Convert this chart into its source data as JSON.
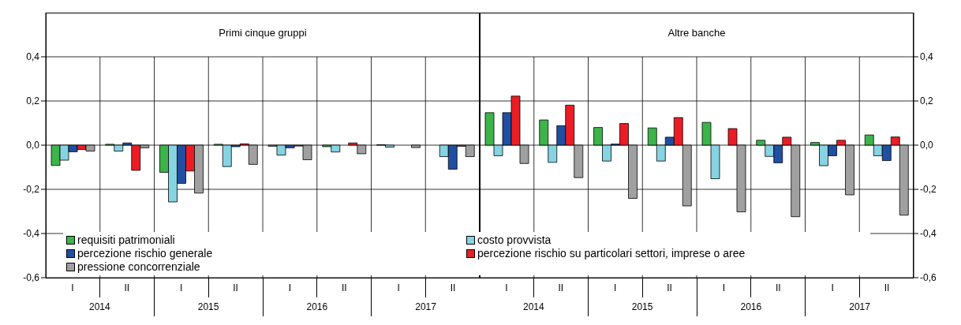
{
  "chart_data": [
    {
      "type": "bar",
      "title": "Primi cinque gruppi",
      "categories": [
        "I",
        "II",
        "I",
        "II",
        "I",
        "II",
        "I",
        "II"
      ],
      "annotations": [
        "2014",
        "2015",
        "2016",
        "2017"
      ],
      "ylim": [
        -0.6,
        0.6
      ],
      "yticks": [
        {
          "value": -0.6,
          "label": "-0,6"
        },
        {
          "value": -0.4,
          "label": "-0,4"
        },
        {
          "value": -0.2,
          "label": "-0,2"
        },
        {
          "value": 0,
          "label": "0,0"
        },
        {
          "value": 0.2,
          "label": "0,2"
        },
        {
          "value": 0.4,
          "label": "0,4"
        }
      ],
      "grid": "y",
      "legend": "bottom",
      "series": [
        {
          "name": "requisiti patrimoniali",
          "color": "#3cb44a",
          "values": [
            -0.092,
            0.004,
            -0.123,
            0.004,
            -0.005,
            -0.007,
            0.002,
            null
          ]
        },
        {
          "name": "costo provvista",
          "color": "#86d3e2",
          "values": [
            -0.068,
            -0.027,
            -0.257,
            -0.097,
            -0.045,
            -0.031,
            -0.009,
            -0.052
          ]
        },
        {
          "name": "percezione rischio generale",
          "color": "#1f4ea3",
          "values": [
            -0.03,
            0.01,
            -0.173,
            -0.007,
            -0.012,
            null,
            null,
            -0.109
          ]
        },
        {
          "name": "percezione rischio su particolari settori, imprese o aree",
          "color": "#ec1c24",
          "values": [
            -0.02,
            -0.114,
            -0.117,
            0.006,
            -0.004,
            0.01,
            null,
            -0.005
          ]
        },
        {
          "name": "pressione concorrenziale",
          "color": "#a0a0a0",
          "values": [
            -0.027,
            -0.012,
            -0.217,
            -0.087,
            -0.066,
            -0.039,
            -0.011,
            -0.052
          ]
        }
      ]
    },
    {
      "type": "bar",
      "title": "Altre banche",
      "categories": [
        "I",
        "II",
        "I",
        "II",
        "I",
        "II",
        "I",
        "II"
      ],
      "annotations": [
        "2014",
        "2015",
        "2016",
        "2017"
      ],
      "ylim": [
        -0.6,
        0.6
      ],
      "yticks": [
        {
          "value": -0.6,
          "label": "-0,6"
        },
        {
          "value": -0.4,
          "label": "-0,4"
        },
        {
          "value": -0.2,
          "label": "-0,2"
        },
        {
          "value": 0,
          "label": "0,0"
        },
        {
          "value": 0.2,
          "label": "0,2"
        },
        {
          "value": 0.4,
          "label": "0,4"
        }
      ],
      "grid": "y",
      "series": [
        {
          "color": "#3cb44a",
          "values": [
            0.147,
            0.114,
            0.08,
            0.078,
            0.103,
            0.022,
            0.012,
            0.046
          ]
        },
        {
          "color": "#86d3e2",
          "values": [
            -0.048,
            -0.078,
            -0.072,
            -0.072,
            -0.152,
            -0.051,
            -0.093,
            -0.048
          ]
        },
        {
          "color": "#1f4ea3",
          "values": [
            0.147,
            0.088,
            0.005,
            0.036,
            null,
            -0.08,
            -0.048,
            -0.07
          ]
        },
        {
          "color": "#ec1c24",
          "values": [
            0.222,
            0.181,
            0.098,
            0.125,
            0.075,
            0.036,
            0.022,
            0.037
          ]
        },
        {
          "color": "#a0a0a0",
          "values": [
            -0.083,
            -0.147,
            -0.241,
            -0.275,
            -0.302,
            -0.324,
            -0.225,
            -0.317
          ]
        }
      ]
    }
  ]
}
